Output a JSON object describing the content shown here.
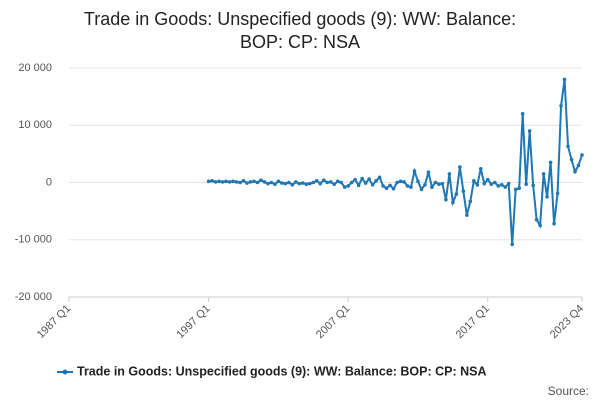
{
  "chart_data": {
    "type": "line",
    "title": "Trade in Goods: Unspecified goods (9): WW: Balance: BOP: CP: NSA",
    "source": "Source:",
    "categories": [
      "1987 Q1",
      null,
      null,
      null,
      null,
      null,
      null,
      null,
      null,
      null,
      null,
      null,
      null,
      null,
      null,
      null,
      null,
      null,
      null,
      null,
      null,
      null,
      null,
      null,
      null,
      null,
      null,
      null,
      null,
      null,
      null,
      null,
      null,
      null,
      null,
      null,
      null,
      null,
      null,
      null,
      "1997 Q1",
      null,
      null,
      null,
      null,
      null,
      null,
      null,
      null,
      null,
      null,
      null,
      null,
      null,
      null,
      null,
      null,
      null,
      null,
      null,
      null,
      null,
      null,
      null,
      null,
      null,
      null,
      null,
      null,
      null,
      null,
      null,
      null,
      null,
      null,
      null,
      null,
      null,
      null,
      null,
      "2007 Q1",
      null,
      null,
      null,
      null,
      null,
      null,
      null,
      null,
      null,
      null,
      null,
      null,
      null,
      null,
      null,
      null,
      null,
      null,
      null,
      null,
      null,
      null,
      null,
      null,
      null,
      null,
      null,
      null,
      null,
      null,
      null,
      null,
      null,
      null,
      null,
      null,
      null,
      null,
      null,
      "2017 Q1",
      null,
      null,
      null,
      null,
      null,
      null,
      null,
      null,
      null,
      null,
      null,
      null,
      null,
      null,
      null,
      null,
      null,
      null,
      null,
      null,
      null,
      null,
      null,
      null,
      null,
      null,
      "2023 Q4"
    ],
    "series": [
      {
        "name": "Trade in Goods: Unspecified goods (9): WW: Balance: BOP: CP: NSA",
        "color": "#1f77b4",
        "values": [
          null,
          null,
          null,
          null,
          null,
          null,
          null,
          null,
          null,
          null,
          null,
          null,
          null,
          null,
          null,
          null,
          null,
          null,
          null,
          null,
          null,
          null,
          null,
          null,
          null,
          null,
          null,
          null,
          null,
          null,
          null,
          null,
          null,
          null,
          null,
          null,
          null,
          null,
          null,
          null,
          200,
          300,
          100,
          200,
          100,
          200,
          100,
          200,
          100,
          0,
          300,
          -100,
          100,
          200,
          0,
          400,
          100,
          -200,
          0,
          -300,
          200,
          -100,
          -200,
          0,
          -400,
          100,
          -200,
          -100,
          -300,
          -200,
          0,
          300,
          -200,
          400,
          0,
          100,
          -300,
          200,
          0,
          -800,
          -600,
          0,
          500,
          -500,
          700,
          -100,
          600,
          -400,
          300,
          900,
          -600,
          -1000,
          -500,
          -1100,
          0,
          200,
          100,
          -600,
          -800,
          2000,
          200,
          -1200,
          -400,
          1800,
          -800,
          0,
          -300,
          -200,
          -3000,
          1500,
          -3500,
          -2000,
          2700,
          -1500,
          -5700,
          -3300,
          300,
          -400,
          2400,
          -200,
          500,
          -300,
          0,
          -600,
          -400,
          -800,
          -200,
          -10800,
          -1200,
          -1000,
          12000,
          -300,
          9000,
          -500,
          -6500,
          -7500,
          1500,
          -2500,
          3500,
          -7200,
          -1900,
          13400,
          18000,
          6300,
          4000,
          1900,
          3000,
          4800
        ]
      }
    ],
    "ylim": [
      -20000,
      20000
    ],
    "yticks": [
      {
        "value": -20000,
        "label": "-20 000"
      },
      {
        "value": -10000,
        "label": "-10 000"
      },
      0,
      {
        "value": 10000,
        "label": "10 000"
      },
      {
        "value": 20000,
        "label": "20 000"
      }
    ],
    "grid": true
  }
}
